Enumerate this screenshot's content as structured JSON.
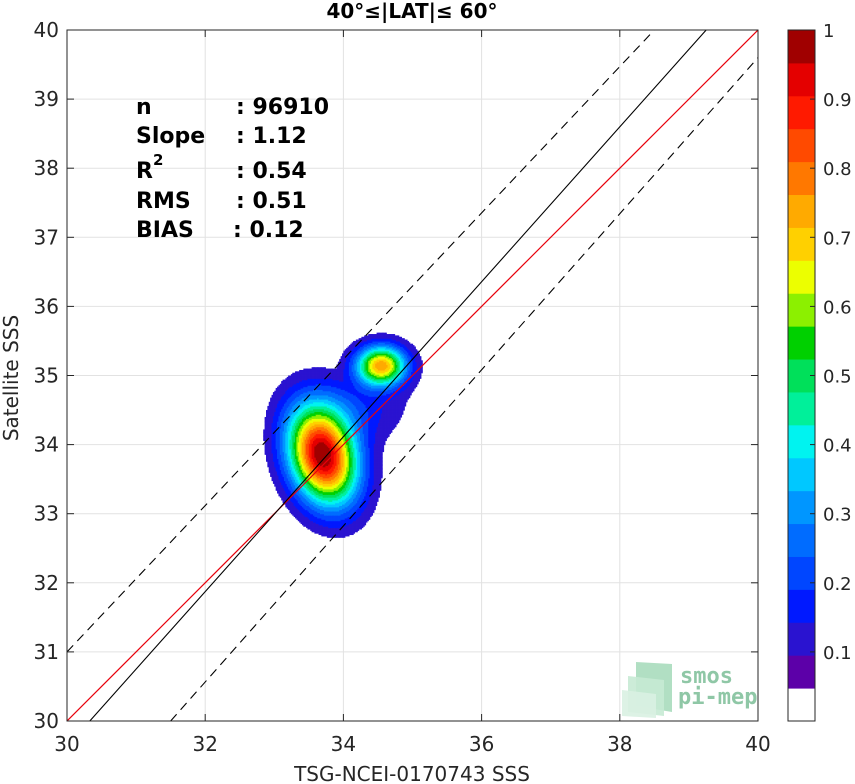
{
  "chart_data": {
    "type": "contour",
    "title": "40°≤|LAT|≤ 60°",
    "xlabel": "TSG-NCEI-0170743 SSS",
    "ylabel": "Satellite SSS",
    "xlim": [
      30,
      40
    ],
    "ylim": [
      30,
      40
    ],
    "xticks": [
      "30",
      "32",
      "34",
      "36",
      "38",
      "40"
    ],
    "yticks": [
      "30",
      "31",
      "32",
      "33",
      "34",
      "35",
      "36",
      "37",
      "38",
      "39",
      "40"
    ],
    "grid": true,
    "stats": {
      "n_label": "n",
      "n_value": ": 96910",
      "slope_label": "Slope",
      "slope_value": ": 1.12",
      "r2_label": "R",
      "r2_sup": "2",
      "r2_value": ": 0.54",
      "rms_label": "RMS",
      "rms_value": ": 0.51",
      "bias_label": "BIAS",
      "bias_value": ": 0.12"
    },
    "lines": {
      "identity": {
        "color": "#e8000b",
        "x": [
          30,
          40
        ],
        "y": [
          30,
          40
        ]
      },
      "fit": {
        "color": "#000000",
        "slope": 1.12,
        "x": [
          30.33,
          39.25
        ],
        "y": [
          30,
          40
        ]
      },
      "upper_bound": {
        "color": "#000000",
        "style": "dashed",
        "x": [
          30,
          38.5
        ],
        "y": [
          31.0,
          40
        ]
      },
      "lower_bound": {
        "color": "#000000",
        "style": "dashed",
        "x": [
          31.5,
          40
        ],
        "y": [
          30,
          39.6
        ]
      }
    },
    "density": {
      "peaks": [
        {
          "x": 33.7,
          "y": 33.85,
          "level": 1.0
        },
        {
          "x": 34.55,
          "y": 35.15,
          "level": 0.72
        }
      ]
    },
    "colorbar": {
      "range": [
        0,
        1
      ],
      "ticks": [
        "0.1",
        "0.2",
        "0.3",
        "0.4",
        "0.5",
        "0.6",
        "0.7",
        "0.8",
        "0.9",
        "1"
      ],
      "colors": [
        "#ffffff",
        "#5c00a8",
        "#2a13d0",
        "#0019ff",
        "#0046ff",
        "#006cff",
        "#0096ff",
        "#00c8ff",
        "#00f3f0",
        "#00f09a",
        "#00e05a",
        "#00d000",
        "#8cf000",
        "#ecff00",
        "#ffd000",
        "#ffaa00",
        "#ff7800",
        "#ff4a00",
        "#ff1a00",
        "#e40000",
        "#a00000"
      ]
    }
  },
  "logo": {
    "line1": "smos",
    "line2": "pi-mep"
  }
}
